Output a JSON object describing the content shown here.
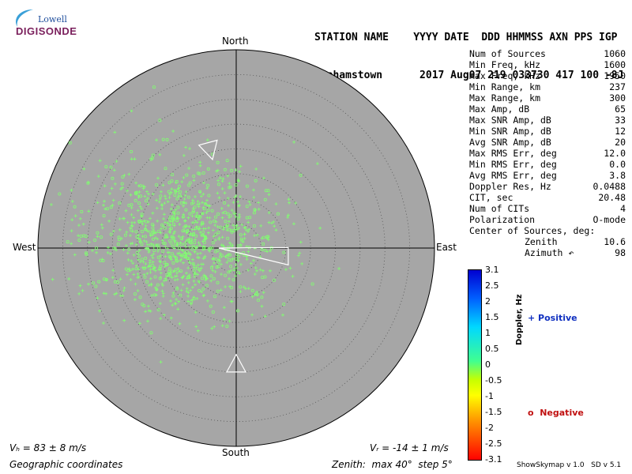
{
  "logo": {
    "line1": "Lowell",
    "line2": "DIGISONDE"
  },
  "header": {
    "line1": "STATION NAME    YYYY DATE  DDD HHMMSS AXN PPS IGP",
    "line2": "Grahamstown      2017 Aug07 219 033730 417 100 -8J"
  },
  "stats": [
    {
      "label": "Num of Sources",
      "value": "1060"
    },
    {
      "label": "Min Freq, kHz",
      "value": "1600"
    },
    {
      "label": "Max Freq, kHz",
      "value": "1950"
    },
    {
      "label": "Min Range, km",
      "value": "237"
    },
    {
      "label": "Max Range, km",
      "value": "300"
    },
    {
      "label": "Max Amp, dB",
      "value": "65"
    },
    {
      "label": "Max SNR Amp, dB",
      "value": "33"
    },
    {
      "label": "Min SNR Amp, dB",
      "value": "12"
    },
    {
      "label": "Avg SNR Amp, dB",
      "value": "20"
    },
    {
      "label": "Max RMS Err, deg",
      "value": "12.0"
    },
    {
      "label": "Min RMS Err, deg",
      "value": "0.0"
    },
    {
      "label": "Avg RMS Err, deg",
      "value": "3.8"
    },
    {
      "label": "Doppler Res, Hz",
      "value": "0.0488"
    },
    {
      "label": "CIT, sec",
      "value": "20.48"
    },
    {
      "label": "Num of CITs",
      "value": "4"
    },
    {
      "label": "Polarization",
      "value": "O-mode"
    }
  ],
  "center": {
    "heading": "Center of Sources, deg:",
    "zenith_label": "Zenith",
    "zenith_value": "10.6",
    "azimuth_label": "Azimuth ↶",
    "azimuth_value": "98"
  },
  "footer": {
    "vh": "Vₕ = 83 ± 8 m/s",
    "vz": "Vᵣ = -14 ± 1 m/s",
    "coords": "Geographic coordinates",
    "zenith": "Zenith:  max 40°  step 5°",
    "version": "ShowSkymap v 1.0   SD v 5.1"
  },
  "legend": {
    "positive": "+ Positive",
    "negative": "o  Negative",
    "colorbar_title": "Doppler, Hz"
  },
  "colors": {
    "disk": "#a6a6a6",
    "positive_text": "#1030c0",
    "negative_text": "#c01010",
    "marker": "#80ff70"
  },
  "chart_data": {
    "type": "scatter",
    "projection": "polar-skymap",
    "directions": {
      "north": "North",
      "south": "South",
      "east": "East",
      "west": "West"
    },
    "zenith_max_deg": 40,
    "zenith_step_deg": 5,
    "colorbar": {
      "label": "Doppler, Hz",
      "range": [
        -3.1,
        3.1
      ],
      "ticks": [
        "3.1",
        "2.5",
        "2",
        "1.5",
        "1",
        "0.5",
        "0",
        "-0.5",
        "-1",
        "-1.5",
        "-2",
        "-2.5",
        "-3.1"
      ]
    },
    "center_of_sources": {
      "zenith_deg": 10.6,
      "azimuth_deg": 98
    },
    "source_cluster": {
      "count": 1060,
      "center": {
        "zenith_deg": 11,
        "azimuth_deg": 280
      },
      "spread_deg": 8,
      "doppler_hz": 0.2
    },
    "arrows": [
      {
        "zenith_deg": 22,
        "azimuth_deg": 345
      },
      {
        "zenith_deg": 25,
        "azimuth_deg": 180
      }
    ]
  }
}
